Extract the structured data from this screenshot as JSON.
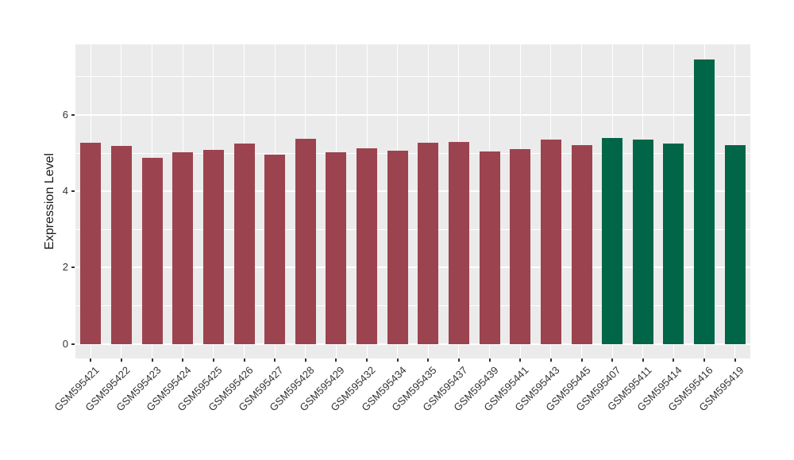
{
  "chart_data": {
    "type": "bar",
    "title": "",
    "xlabel": "",
    "ylabel": "Expression Level",
    "grid": "on",
    "legend": "none",
    "ylim": [
      -0.38,
      7.85
    ],
    "yticks": [
      0,
      2,
      4,
      6
    ],
    "minor_gridlines": [
      1,
      3,
      5,
      7
    ],
    "categories": [
      "GSM595421",
      "GSM595422",
      "GSM595423",
      "GSM595424",
      "GSM595425",
      "GSM595426",
      "GSM595427",
      "GSM595428",
      "GSM595429",
      "GSM595432",
      "GSM595434",
      "GSM595435",
      "GSM595437",
      "GSM595439",
      "GSM595441",
      "GSM595443",
      "GSM595445",
      "GSM595407",
      "GSM595411",
      "GSM595414",
      "GSM595416",
      "GSM595419"
    ],
    "values": [
      5.28,
      5.18,
      4.87,
      5.02,
      5.08,
      5.25,
      4.96,
      5.38,
      5.02,
      5.12,
      5.06,
      5.27,
      5.3,
      5.04,
      5.11,
      5.35,
      5.21,
      5.39,
      5.35,
      5.25,
      7.46,
      5.21
    ],
    "colors": [
      "#9C4350",
      "#9C4350",
      "#9C4350",
      "#9C4350",
      "#9C4350",
      "#9C4350",
      "#9C4350",
      "#9C4350",
      "#9C4350",
      "#9C4350",
      "#9C4350",
      "#9C4350",
      "#9C4350",
      "#9C4350",
      "#9C4350",
      "#9C4350",
      "#9C4350",
      "#006647",
      "#006647",
      "#006647",
      "#006647",
      "#006647"
    ],
    "groups": [
      {
        "name": "maroon-group",
        "color": "#9C4350",
        "first": "GSM595421",
        "last": "GSM595445",
        "count": 17
      },
      {
        "name": "green-group",
        "color": "#006647",
        "first": "GSM595407",
        "last": "GSM595419",
        "count": 5
      }
    ]
  },
  "style": {
    "page_bg": "#FFFFFF",
    "panel_bg": "#EBEBEB",
    "grid_color": "#FFFFFF",
    "axis_text_color": "#333333",
    "axis_title_color": "#1A1A1A",
    "bar_color_maroon": "#9C4350",
    "bar_color_green": "#006647"
  }
}
